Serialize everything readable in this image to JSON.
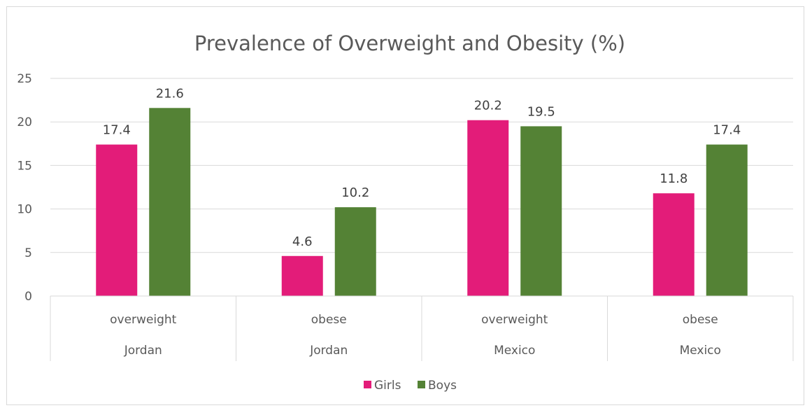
{
  "chart_data": {
    "type": "bar",
    "title": "Prevalence of Overweight and Obesity (%)",
    "categories": [
      {
        "level1": "overweight",
        "level2": "Jordan"
      },
      {
        "level1": "obese",
        "level2": "Jordan"
      },
      {
        "level1": "overweight",
        "level2": "Mexico"
      },
      {
        "level1": "obese",
        "level2": "Mexico"
      }
    ],
    "series": [
      {
        "name": "Girls",
        "color": "#e31c79",
        "values": [
          17.4,
          4.6,
          20.2,
          11.8
        ]
      },
      {
        "name": "Boys",
        "color": "#548235",
        "values": [
          21.6,
          10.2,
          19.5,
          17.4
        ]
      }
    ],
    "ylim": [
      0,
      25
    ],
    "yticks": [
      0,
      5,
      10,
      15,
      20,
      25
    ],
    "grid": true,
    "legend": "bottom",
    "data_labels": true
  }
}
